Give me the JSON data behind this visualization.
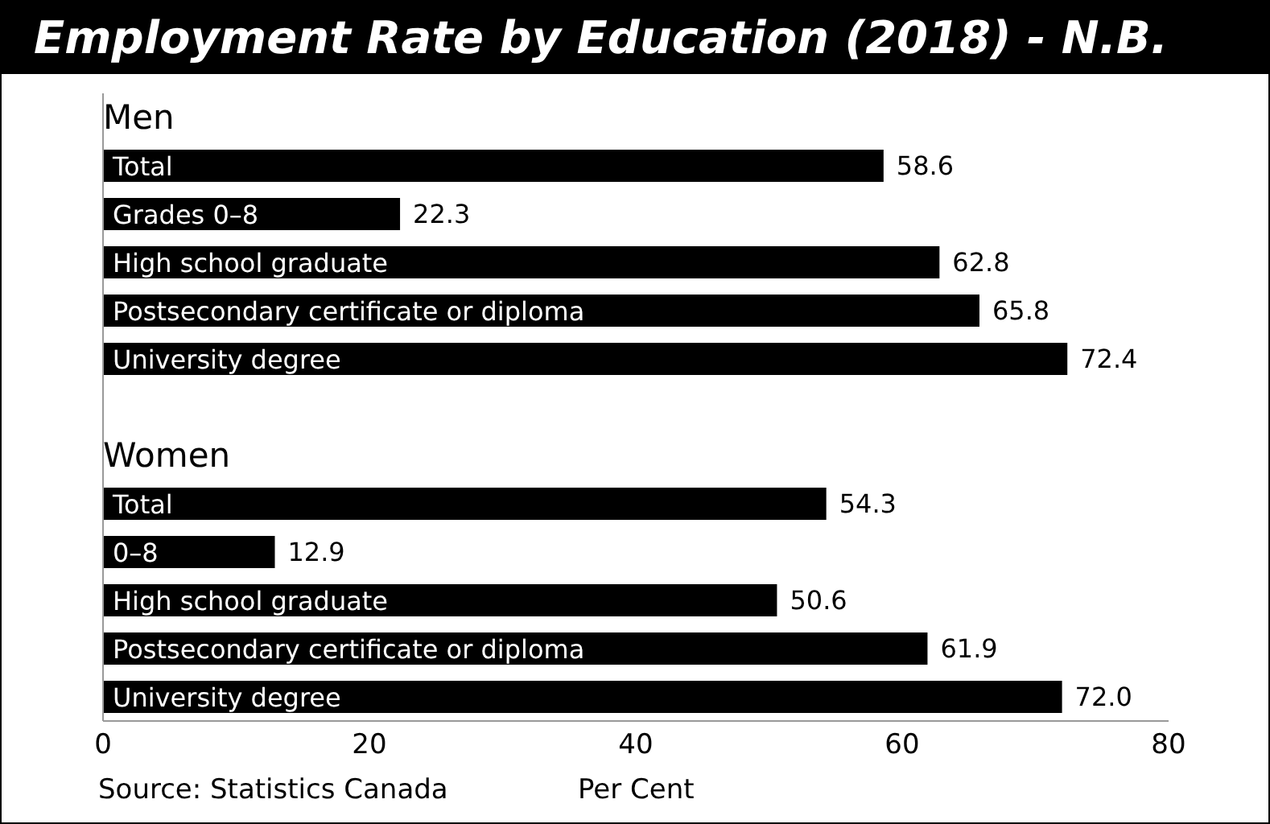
{
  "chart_data": {
    "type": "bar",
    "orientation": "horizontal",
    "title": "Employment Rate by Education (2018) - N.B.",
    "xlabel": "Per Cent",
    "annotations": [
      "Source: Statistics Canada"
    ],
    "categories": [
      "Men",
      "Total",
      "Grades 0–8",
      "High school graduate",
      "Postsecondary certificate or diploma",
      "University degree",
      null,
      "Women",
      "Total",
      "0–8",
      "High school graduate",
      "Postsecondary certificate or diploma",
      "University degree"
    ],
    "values": [
      null,
      58.6,
      22.3,
      62.8,
      65.8,
      72.4,
      null,
      null,
      54.3,
      12.9,
      50.6,
      61.9,
      72.0
    ],
    "value_labels": [
      null,
      "58.6",
      "22.3",
      "62.8",
      "65.8",
      "72.4",
      null,
      null,
      "54.3",
      "12.9",
      "50.6",
      "61.9",
      "72.0"
    ],
    "color": "#000000",
    "xlim": [
      0,
      80
    ],
    "xticks": [
      0,
      20,
      40,
      60,
      80
    ],
    "grid": false,
    "legend": false
  }
}
